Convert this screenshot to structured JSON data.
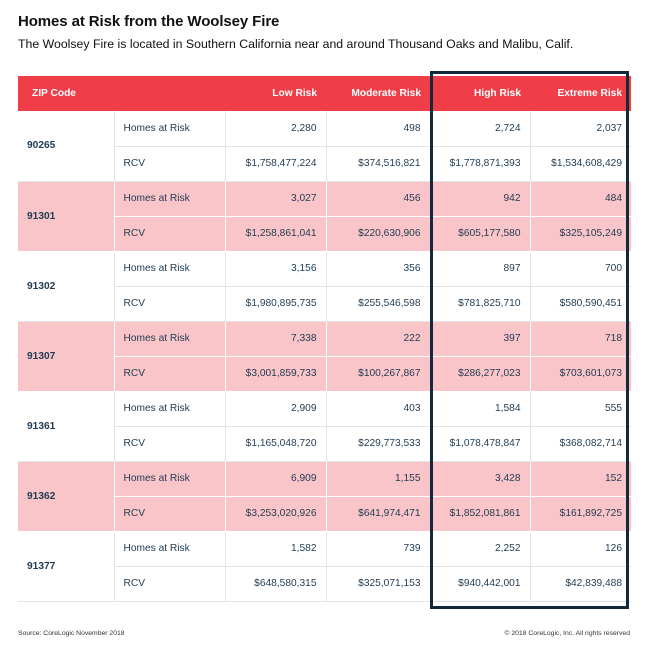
{
  "title": "Homes at Risk from the Woolsey Fire",
  "subtitle": "The Woolsey Fire is located in Southern California near and around Thousand Oaks and Malibu, Calif.",
  "colors": {
    "header": "#ef3e47",
    "alt_row": "#f9c5c8",
    "highlight_border": "#12293b",
    "text": "#1f3b52"
  },
  "highlighted_columns": [
    "High Risk",
    "Extreme Risk"
  ],
  "chart_data": {
    "type": "table",
    "columns": [
      "ZIP Code",
      "",
      "Low Risk",
      "Moderate Risk",
      "High Risk",
      "Extreme Risk"
    ],
    "metrics": [
      "Homes at Risk",
      "RCV"
    ],
    "rows": [
      {
        "zip": "90265",
        "pink": false,
        "homes": [
          "2,280",
          "498",
          "2,724",
          "2,037"
        ],
        "rcv": [
          "$1,758,477,224",
          "$374,516,821",
          "$1,778,871,393",
          "$1,534,608,429"
        ]
      },
      {
        "zip": "91301",
        "pink": true,
        "homes": [
          "3,027",
          "456",
          "942",
          "484"
        ],
        "rcv": [
          "$1,258,861,041",
          "$220,630,906",
          "$605,177,580",
          "$325,105,249"
        ]
      },
      {
        "zip": "91302",
        "pink": false,
        "homes": [
          "3,156",
          "356",
          "897",
          "700"
        ],
        "rcv": [
          "$1,980,895,735",
          "$255,546,598",
          "$781,825,710",
          "$580,590,451"
        ]
      },
      {
        "zip": "91307",
        "pink": true,
        "homes": [
          "7,338",
          "222",
          "397",
          "718"
        ],
        "rcv": [
          "$3,001,859,733",
          "$100,267,867",
          "$286,277,023",
          "$703,601,073"
        ]
      },
      {
        "zip": "91361",
        "pink": false,
        "homes": [
          "2,909",
          "403",
          "1,584",
          "555"
        ],
        "rcv": [
          "$1,165,048,720",
          "$229,773,533",
          "$1,078,478,847",
          "$368,082,714"
        ]
      },
      {
        "zip": "91362",
        "pink": true,
        "homes": [
          "6,909",
          "1,155",
          "3,428",
          "152"
        ],
        "rcv": [
          "$3,253,020,926",
          "$641,974,471",
          "$1,852,081,861",
          "$161,892,725"
        ]
      },
      {
        "zip": "91377",
        "pink": false,
        "homes": [
          "1,582",
          "739",
          "2,252",
          "126"
        ],
        "rcv": [
          "$648,580,315",
          "$325,071,153",
          "$940,442,001",
          "$42,839,488"
        ]
      }
    ]
  },
  "footer": {
    "source": "Source: CoreLogic November 2018",
    "copyright": "© 2018 CoreLogic, Inc. All rights reserved"
  }
}
